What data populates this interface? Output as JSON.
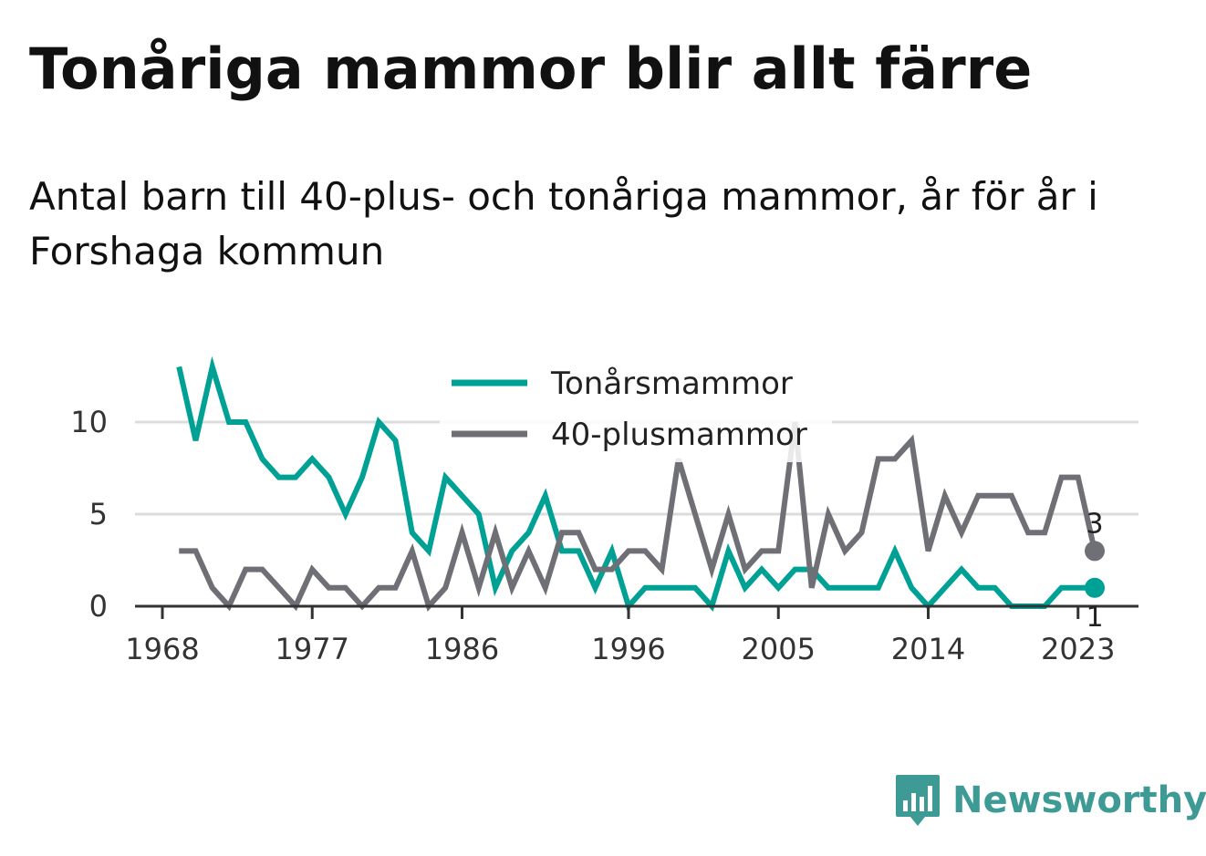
{
  "title": "Tonåriga mammor blir allt färre",
  "subtitle": "Antal barn till 40-plus- och tonåriga mammor, år för år i Forshaga kommun",
  "brand": "Newsworthy",
  "chart_data": {
    "type": "line",
    "x": [
      1969,
      1970,
      1971,
      1972,
      1973,
      1974,
      1975,
      1976,
      1977,
      1978,
      1979,
      1980,
      1981,
      1982,
      1983,
      1984,
      1985,
      1986,
      1987,
      1988,
      1989,
      1990,
      1991,
      1992,
      1993,
      1994,
      1995,
      1996,
      1997,
      1998,
      1999,
      2000,
      2001,
      2002,
      2003,
      2004,
      2005,
      2006,
      2007,
      2008,
      2009,
      2010,
      2011,
      2012,
      2013,
      2014,
      2015,
      2016,
      2017,
      2018,
      2019,
      2020,
      2021,
      2022,
      2023,
      2024
    ],
    "x_ticks": [
      "1968",
      "1977",
      "1986",
      "1996",
      "2005",
      "2014",
      "2023"
    ],
    "y_ticks": [
      "0",
      "5",
      "10"
    ],
    "ylim": [
      0,
      13
    ],
    "grid": true,
    "legend_position": "top",
    "series": [
      {
        "name": "Tonårsmammor",
        "color": "#00a195",
        "values": [
          13,
          9,
          13,
          10,
          10,
          8,
          7,
          7,
          8,
          7,
          5,
          7,
          10,
          9,
          4,
          3,
          7,
          6,
          5,
          1,
          3,
          4,
          6,
          3,
          3,
          1,
          3,
          0,
          1,
          1,
          1,
          1,
          0,
          3,
          1,
          2,
          1,
          2,
          2,
          1,
          1,
          1,
          1,
          3,
          1,
          0,
          1,
          2,
          1,
          1,
          0,
          0,
          0,
          1,
          1,
          1
        ],
        "end_label": "1"
      },
      {
        "name": "40-plusmammor",
        "color": "#6f6f76",
        "values": [
          3,
          3,
          1,
          0,
          2,
          2,
          1,
          0,
          2,
          1,
          1,
          0,
          1,
          1,
          3,
          0,
          1,
          4,
          1,
          4,
          1,
          3,
          1,
          4,
          4,
          2,
          2,
          3,
          3,
          2,
          8,
          5,
          2,
          5,
          2,
          3,
          3,
          10,
          1,
          5,
          3,
          4,
          8,
          8,
          9,
          3,
          6,
          4,
          6,
          6,
          6,
          4,
          4,
          7,
          7,
          3
        ],
        "end_label": "3"
      }
    ]
  }
}
